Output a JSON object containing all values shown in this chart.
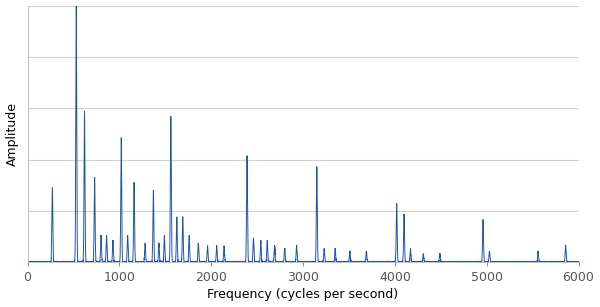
{
  "title": "",
  "xlabel": "Frequency (cycles per second)",
  "ylabel": "Amplitude",
  "xlim": [
    0,
    6000
  ],
  "ylim": [
    0,
    1.0
  ],
  "line_color": "#2255aa",
  "line_width": 0.7,
  "background_color": "#ffffff",
  "plot_bg_color": "#ffffff",
  "grid_color": "#d0d0d8",
  "peaks": [
    {
      "freq": 270,
      "amp": 0.28
    },
    {
      "freq": 530,
      "amp": 0.97
    },
    {
      "freq": 620,
      "amp": 0.57
    },
    {
      "freq": 730,
      "amp": 0.32
    },
    {
      "freq": 800,
      "amp": 0.1
    },
    {
      "freq": 860,
      "amp": 0.1
    },
    {
      "freq": 930,
      "amp": 0.08
    },
    {
      "freq": 1020,
      "amp": 0.47
    },
    {
      "freq": 1090,
      "amp": 0.1
    },
    {
      "freq": 1160,
      "amp": 0.3
    },
    {
      "freq": 1280,
      "amp": 0.07
    },
    {
      "freq": 1370,
      "amp": 0.27
    },
    {
      "freq": 1430,
      "amp": 0.07
    },
    {
      "freq": 1490,
      "amp": 0.1
    },
    {
      "freq": 1560,
      "amp": 0.55
    },
    {
      "freq": 1625,
      "amp": 0.17
    },
    {
      "freq": 1690,
      "amp": 0.17
    },
    {
      "freq": 1760,
      "amp": 0.1
    },
    {
      "freq": 1860,
      "amp": 0.07
    },
    {
      "freq": 1960,
      "amp": 0.06
    },
    {
      "freq": 2060,
      "amp": 0.06
    },
    {
      "freq": 2140,
      "amp": 0.06
    },
    {
      "freq": 2390,
      "amp": 0.4
    },
    {
      "freq": 2460,
      "amp": 0.09
    },
    {
      "freq": 2540,
      "amp": 0.08
    },
    {
      "freq": 2610,
      "amp": 0.08
    },
    {
      "freq": 2690,
      "amp": 0.06
    },
    {
      "freq": 2800,
      "amp": 0.05
    },
    {
      "freq": 2930,
      "amp": 0.06
    },
    {
      "freq": 3150,
      "amp": 0.36
    },
    {
      "freq": 3230,
      "amp": 0.05
    },
    {
      "freq": 3350,
      "amp": 0.05
    },
    {
      "freq": 3510,
      "amp": 0.04
    },
    {
      "freq": 3690,
      "amp": 0.04
    },
    {
      "freq": 4020,
      "amp": 0.22
    },
    {
      "freq": 4100,
      "amp": 0.18
    },
    {
      "freq": 4170,
      "amp": 0.05
    },
    {
      "freq": 4310,
      "amp": 0.03
    },
    {
      "freq": 4490,
      "amp": 0.03
    },
    {
      "freq": 4960,
      "amp": 0.16
    },
    {
      "freq": 5030,
      "amp": 0.04
    },
    {
      "freq": 5560,
      "amp": 0.04
    },
    {
      "freq": 5860,
      "amp": 0.06
    }
  ],
  "noise_level": 0.008,
  "figsize": [
    6.0,
    3.07
  ],
  "dpi": 100
}
